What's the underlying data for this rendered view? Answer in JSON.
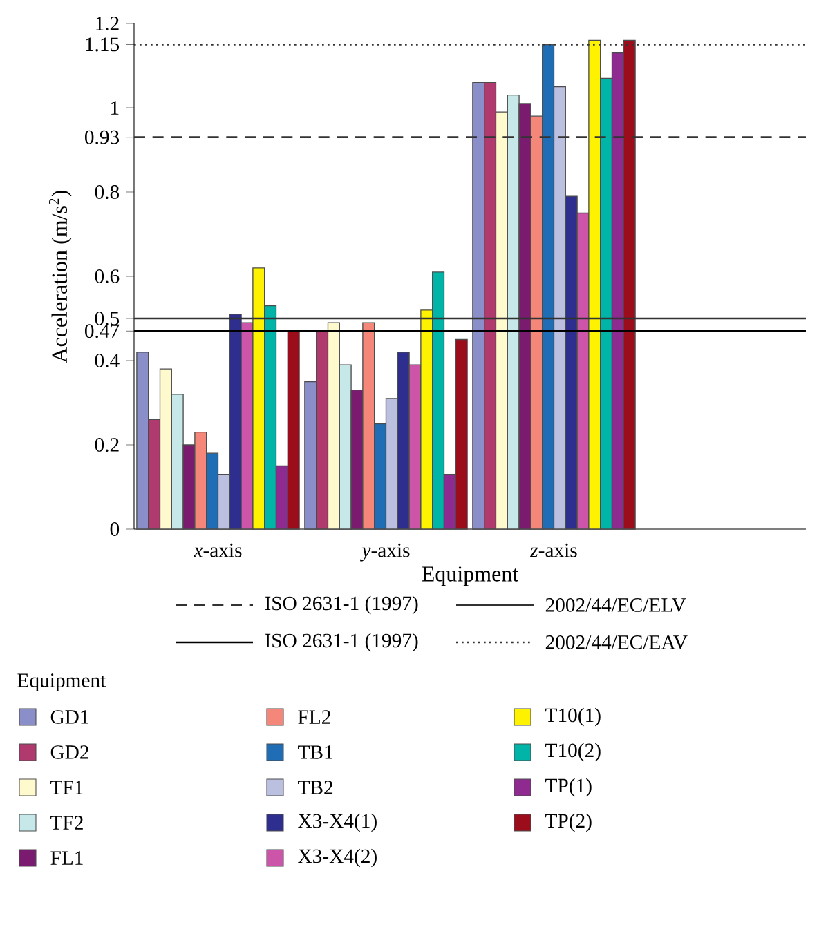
{
  "chart_data": {
    "type": "bar",
    "xlabel": "Equipment",
    "ylabel": "Acceleration (m/s$^{2}$)",
    "legend_title": "Equipment",
    "categories": [
      "*x*-axis",
      "*y*-axis",
      "*z*-axis",
      null
    ],
    "ylim": [
      0,
      1.2
    ],
    "yticks": [
      0,
      0.2,
      0.4,
      0.47,
      0.5,
      0.6,
      0.8,
      0.93,
      1,
      1.15,
      1.2
    ],
    "grid": false,
    "legend": "bottom",
    "series": [
      {
        "name": "GD1",
        "color": "#8b8fc9",
        "values": [
          0.42,
          0.35,
          1.06,
          null
        ]
      },
      {
        "name": "GD2",
        "color": "#b03a6e",
        "values": [
          0.26,
          0.47,
          1.06,
          null
        ]
      },
      {
        "name": "TF1",
        "color": "#fffacd",
        "values": [
          0.38,
          0.49,
          0.99,
          null
        ]
      },
      {
        "name": "TF2",
        "color": "#c6e8e8",
        "values": [
          0.32,
          0.39,
          1.03,
          null
        ]
      },
      {
        "name": "FL1",
        "color": "#7a1b70",
        "values": [
          0.2,
          0.33,
          1.01,
          null
        ]
      },
      {
        "name": "FL2",
        "color": "#f4877a",
        "values": [
          0.23,
          0.49,
          0.98,
          null
        ]
      },
      {
        "name": "TB1",
        "color": "#1f6db5",
        "values": [
          0.18,
          0.25,
          1.15,
          null
        ]
      },
      {
        "name": "TB2",
        "color": "#bcc0e0",
        "values": [
          0.13,
          0.31,
          1.05,
          null
        ]
      },
      {
        "name": "X3-X4(1)",
        "color": "#2e2e8f",
        "values": [
          0.51,
          0.42,
          0.79,
          null
        ]
      },
      {
        "name": "X3-X4(2)",
        "color": "#cc55aa",
        "values": [
          0.49,
          0.39,
          0.75,
          null
        ]
      },
      {
        "name": "T10(1)",
        "color": "#fff200",
        "values": [
          0.62,
          0.52,
          1.16,
          null
        ]
      },
      {
        "name": "T10(2)",
        "color": "#00b5a8",
        "values": [
          0.53,
          0.61,
          1.07,
          null
        ]
      },
      {
        "name": "TP(1)",
        "color": "#8e2a90",
        "values": [
          0.15,
          0.13,
          1.13,
          null
        ]
      },
      {
        "name": "TP(2)",
        "color": "#9b0d1a",
        "values": [
          0.47,
          0.45,
          1.16,
          null
        ]
      }
    ],
    "ref_lines": [
      {
        "axis": "y",
        "value": 0.93,
        "label": "ISO 2631-1 (1997)",
        "line_style": "dashed",
        "color": "#333333"
      },
      {
        "axis": "y",
        "value": 0.5,
        "label": "2002/44/EC/ELV",
        "line_style": "solid",
        "color": "#333333"
      },
      {
        "axis": "y",
        "value": 0.47,
        "label": "ISO 2631-1 (1997)",
        "line_style": "solid",
        "color": "#000000"
      },
      {
        "axis": "y",
        "value": 1.15,
        "label": "2002/44/EC/EAV",
        "line_style": "dotted",
        "color": "#333333"
      }
    ]
  }
}
